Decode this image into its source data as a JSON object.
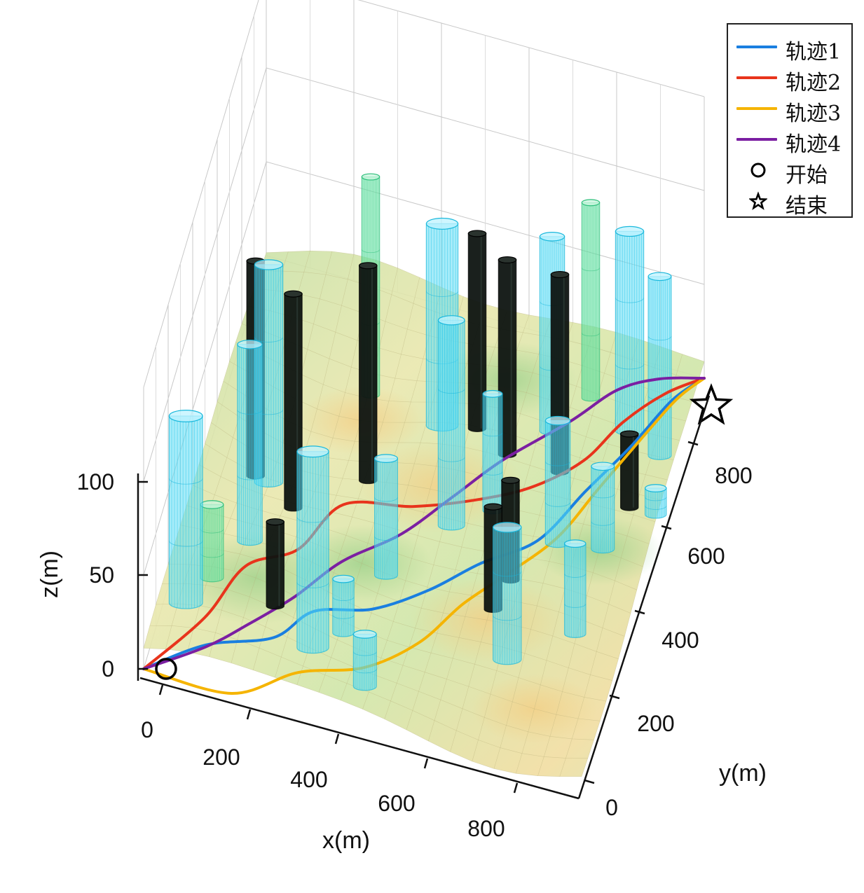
{
  "chart_data": {
    "type": "line",
    "title": "",
    "xlabel": "x(m)",
    "ylabel": "y(m)",
    "zlabel": "z(m)",
    "x_ticks": [
      "0",
      "200",
      "400",
      "600",
      "800"
    ],
    "y_ticks": [
      "0",
      "200",
      "400",
      "600",
      "800"
    ],
    "z_ticks": [
      "0",
      "50",
      "100"
    ],
    "xlim": [
      0,
      1000
    ],
    "ylim": [
      0,
      1000
    ],
    "zlim": [
      0,
      100
    ],
    "grid": true,
    "legend_position": "top-right",
    "start": {
      "name": "开始",
      "x": 0,
      "y": 0,
      "z": 0
    },
    "end": {
      "name": "结束",
      "x": 1000,
      "y": 1000,
      "z": 0
    },
    "series": [
      {
        "name": "轨迹1",
        "color": "#1a7fe0",
        "points": [
          [
            0,
            0,
            0
          ],
          [
            120,
            80,
            3
          ],
          [
            260,
            130,
            5
          ],
          [
            330,
            210,
            6
          ],
          [
            450,
            260,
            4
          ],
          [
            560,
            330,
            6
          ],
          [
            650,
            420,
            6
          ],
          [
            760,
            500,
            8
          ],
          [
            830,
            640,
            8
          ],
          [
            900,
            760,
            10
          ],
          [
            960,
            880,
            12
          ],
          [
            1000,
            1000,
            0
          ]
        ]
      },
      {
        "name": "轨迹2",
        "color": "#e8341c",
        "points": [
          [
            0,
            0,
            0
          ],
          [
            100,
            140,
            3
          ],
          [
            160,
            260,
            8
          ],
          [
            260,
            330,
            8
          ],
          [
            330,
            450,
            10
          ],
          [
            480,
            490,
            10
          ],
          [
            620,
            550,
            10
          ],
          [
            720,
            620,
            8
          ],
          [
            810,
            700,
            10
          ],
          [
            870,
            800,
            12
          ],
          [
            940,
            900,
            10
          ],
          [
            1000,
            1000,
            0
          ]
        ]
      },
      {
        "name": "轨迹3",
        "color": "#f5b400",
        "points": [
          [
            0,
            0,
            0
          ],
          [
            200,
            0,
            0
          ],
          [
            330,
            80,
            2
          ],
          [
            470,
            120,
            5
          ],
          [
            570,
            210,
            5
          ],
          [
            640,
            320,
            6
          ],
          [
            720,
            410,
            8
          ],
          [
            800,
            520,
            8
          ],
          [
            860,
            650,
            10
          ],
          [
            930,
            800,
            12
          ],
          [
            970,
            900,
            10
          ],
          [
            1000,
            1000,
            0
          ]
        ]
      },
      {
        "name": "轨迹4",
        "color": "#7b1fa2",
        "points": [
          [
            0,
            0,
            0
          ],
          [
            120,
            80,
            2
          ],
          [
            200,
            140,
            6
          ],
          [
            280,
            230,
            6
          ],
          [
            360,
            330,
            8
          ],
          [
            470,
            420,
            10
          ],
          [
            560,
            530,
            12
          ],
          [
            640,
            640,
            12
          ],
          [
            760,
            760,
            14
          ],
          [
            840,
            860,
            14
          ],
          [
            920,
            920,
            12
          ],
          [
            1000,
            1000,
            0
          ]
        ]
      }
    ],
    "obstacles": {
      "description_colors": {
        "cyan": "#00d0f0",
        "green": "#44dd99",
        "black": "#0a0a0a"
      },
      "cylinders": [
        {
          "x": 60,
          "y": 130,
          "r": 32,
          "h": 100,
          "color": "cyan"
        },
        {
          "x": 150,
          "y": 330,
          "r": 22,
          "h": 100,
          "color": "cyan"
        },
        {
          "x": 140,
          "y": 520,
          "r": 26,
          "h": 100,
          "color": "cyan"
        },
        {
          "x": 210,
          "y": 470,
          "r": 14,
          "h": 100,
          "color": "black"
        },
        {
          "x": 110,
          "y": 520,
          "r": 14,
          "h": 100,
          "color": "black"
        },
        {
          "x": 100,
          "y": 200,
          "r": 20,
          "h": 40,
          "color": "green"
        },
        {
          "x": 350,
          "y": 130,
          "r": 30,
          "h": 100,
          "color": "cyan"
        },
        {
          "x": 250,
          "y": 180,
          "r": 14,
          "h": 45,
          "color": "black"
        },
        {
          "x": 400,
          "y": 200,
          "r": 18,
          "h": 20,
          "color": "cyan"
        },
        {
          "x": 480,
          "y": 90,
          "r": 20,
          "h": 20,
          "color": "cyan"
        },
        {
          "x": 450,
          "y": 370,
          "r": 20,
          "h": 50,
          "color": "cyan"
        },
        {
          "x": 350,
          "y": 580,
          "r": 14,
          "h": 100,
          "color": "black"
        },
        {
          "x": 300,
          "y": 780,
          "r": 14,
          "h": 100,
          "color": "green"
        },
        {
          "x": 480,
          "y": 720,
          "r": 30,
          "h": 100,
          "color": "cyan"
        },
        {
          "x": 560,
          "y": 510,
          "r": 24,
          "h": 100,
          "color": "cyan"
        },
        {
          "x": 560,
          "y": 720,
          "r": 14,
          "h": 100,
          "color": "black"
        },
        {
          "x": 640,
          "y": 560,
          "r": 16,
          "h": 55,
          "color": "cyan"
        },
        {
          "x": 640,
          "y": 680,
          "r": 14,
          "h": 100,
          "color": "black"
        },
        {
          "x": 700,
          "y": 350,
          "r": 14,
          "h": 45,
          "color": "black"
        },
        {
          "x": 760,
          "y": 250,
          "r": 26,
          "h": 60,
          "color": "cyan"
        },
        {
          "x": 720,
          "y": 420,
          "r": 14,
          "h": 45,
          "color": "black"
        },
        {
          "x": 800,
          "y": 520,
          "r": 22,
          "h": 60,
          "color": "cyan"
        },
        {
          "x": 720,
          "y": 760,
          "r": 22,
          "h": 100,
          "color": "cyan"
        },
        {
          "x": 760,
          "y": 680,
          "r": 14,
          "h": 100,
          "color": "black"
        },
        {
          "x": 780,
          "y": 860,
          "r": 14,
          "h": 100,
          "color": "green"
        },
        {
          "x": 890,
          "y": 340,
          "r": 18,
          "h": 40,
          "color": "cyan"
        },
        {
          "x": 900,
          "y": 530,
          "r": 20,
          "h": 40,
          "color": "cyan"
        },
        {
          "x": 930,
          "y": 640,
          "r": 14,
          "h": 35,
          "color": "black"
        },
        {
          "x": 880,
          "y": 820,
          "r": 26,
          "h": 100,
          "color": "cyan"
        },
        {
          "x": 960,
          "y": 780,
          "r": 20,
          "h": 90,
          "color": "cyan"
        },
        {
          "x": 990,
          "y": 640,
          "r": 18,
          "h": 10,
          "color": "cyan"
        }
      ]
    }
  },
  "legend": {
    "items": [
      {
        "label": "轨迹1",
        "kind": "line",
        "color": "#1a7fe0"
      },
      {
        "label": "轨迹2",
        "kind": "line",
        "color": "#e8341c"
      },
      {
        "label": "轨迹3",
        "kind": "line",
        "color": "#f5b400"
      },
      {
        "label": "轨迹4",
        "kind": "line",
        "color": "#7b1fa2"
      },
      {
        "label": "开始",
        "kind": "circle",
        "color": "#000000"
      },
      {
        "label": "结束",
        "kind": "star",
        "color": "#000000"
      }
    ]
  }
}
